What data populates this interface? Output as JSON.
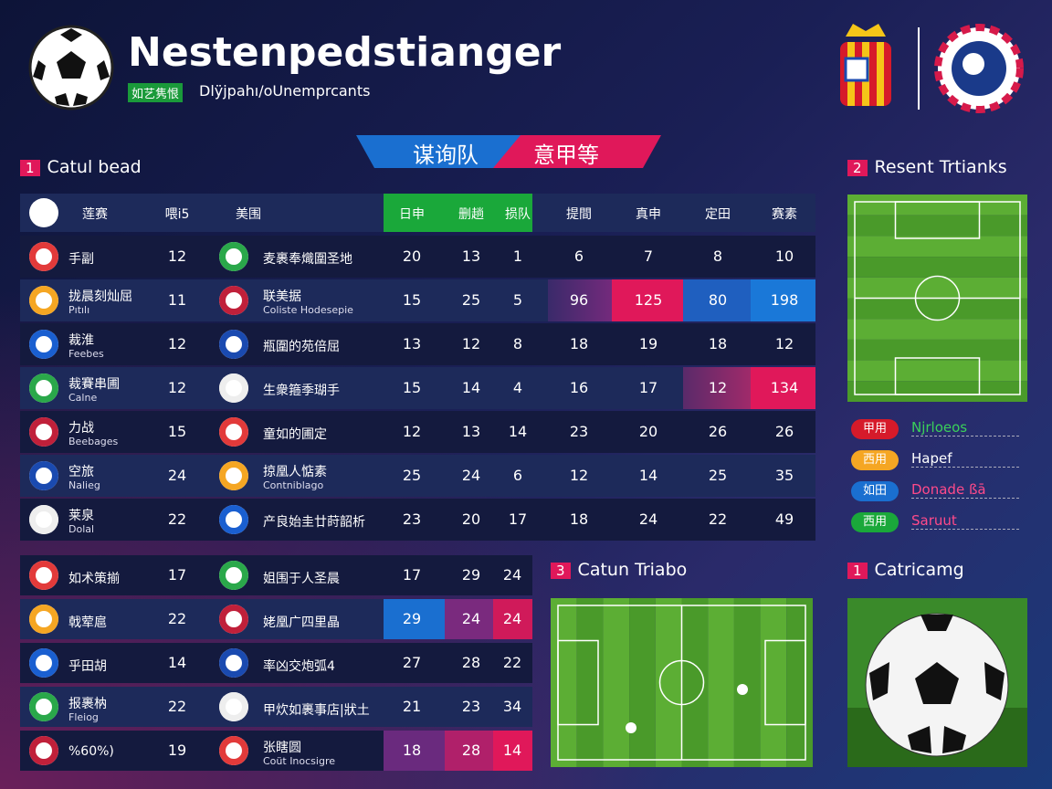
{
  "header": {
    "title": "Nestenpedstianger",
    "badge": "如艺隽恨",
    "subtitle": "Dlÿjpahı/oUnemprcants"
  },
  "banner": {
    "left": "谋询队",
    "right": "意甲等"
  },
  "standings": {
    "number": "1",
    "title": "Catul bead",
    "columns": [
      "莲赛",
      "喂i5",
      "美围",
      "日申",
      "删趟",
      "损队",
      "提間",
      "真申",
      "定田",
      "赛素"
    ],
    "rows": [
      {
        "team": "手副",
        "played": 12,
        "opponent": "麦裹奉熾圍圣地",
        "stats": [
          20,
          13,
          1,
          6,
          7,
          8,
          10
        ]
      },
      {
        "team": "拢晨刻灿屈",
        "team_note": "Pıtılı",
        "played": 11,
        "opponent": "联美据",
        "opponent_note": "Coliste Hodesepie",
        "stats": [
          15,
          25,
          5,
          96,
          125,
          80,
          198
        ]
      },
      {
        "team": "裁淮",
        "team_note": "Feebes",
        "played": 12,
        "opponent": "瓶圍的苑倍屈",
        "stats": [
          13,
          12,
          8,
          18,
          19,
          18,
          12
        ]
      },
      {
        "team": "裁賽串圃",
        "team_note": "Calne",
        "played": 12,
        "opponent": "生衆箍季瑚手",
        "stats": [
          15,
          14,
          4,
          16,
          17,
          12,
          134
        ]
      },
      {
        "team": "力战",
        "team_note": "Beebages",
        "played": 15,
        "opponent": "童如的圃定",
        "stats": [
          12,
          13,
          14,
          23,
          20,
          26,
          26
        ]
      },
      {
        "team": "空旅",
        "team_note": "Nalieg",
        "played": 24,
        "opponent": "掠凰人惦素",
        "opponent_note": "Contniblago",
        "stats": [
          25,
          24,
          6,
          12,
          14,
          25,
          35
        ]
      },
      {
        "team": "莱泉",
        "team_note": "Dolal",
        "played": 22,
        "opponent": "产良始圭廿莳韶析",
        "stats": [
          23,
          20,
          17,
          18,
          24,
          22,
          49
        ]
      }
    ]
  },
  "lower_table": {
    "rows": [
      {
        "team": "如术策揃",
        "played": 17,
        "opponent": "姐围于人圣晨",
        "stats": [
          17,
          29,
          24
        ]
      },
      {
        "team": "戟荤扈",
        "played": 22,
        "opponent": "姥凰广四里晶",
        "stats": [
          29,
          24,
          24
        ]
      },
      {
        "team": "乎田胡",
        "played": 14,
        "opponent": "率凶交炮弧4",
        "stats": [
          27,
          28,
          22
        ]
      },
      {
        "team": "报裹枘",
        "team_note": "Fleiog",
        "played": 22,
        "opponent": "甲炊如裹事店|狀土",
        "stats": [
          21,
          23,
          34
        ]
      },
      {
        "team": "%60%)",
        "played": 19,
        "opponent": "张瞎圆",
        "opponent_note": "Coüt Inocsigre",
        "stats": [
          18,
          28,
          14
        ]
      }
    ]
  },
  "recent": {
    "number": "2",
    "title": "Resent Trtianks",
    "legend": [
      {
        "tag": "甲用",
        "label": "Njrloeos"
      },
      {
        "tag": "西用",
        "label": "Hapef"
      },
      {
        "tag": "如田",
        "label": "Donade ßā"
      },
      {
        "tag": "西用",
        "label": "Saruut"
      }
    ]
  },
  "pitch_panel": {
    "number": "3",
    "title": "Catun Triabo"
  },
  "photo_panel": {
    "number": "1",
    "title": "Catricamg"
  }
}
